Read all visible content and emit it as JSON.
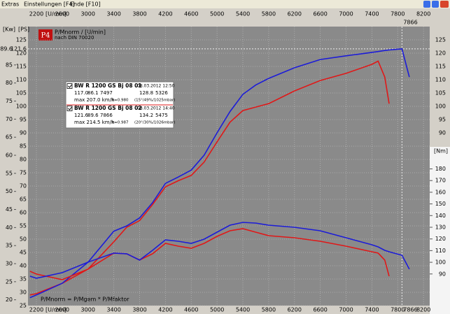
{
  "menu": [
    "Extras",
    "Einstellungen [F4]",
    "Ende [F10]"
  ],
  "chart_data": {
    "type": "line",
    "logo": "P4",
    "title": "P/Mnorm / [U/min]",
    "subtitle": "nach DIN 70020",
    "formula": "P/Mnorm = P/Mgem * P/Mfaktor",
    "x_label": "[U/min]",
    "y_label": "[PS]",
    "kw_label": "[Kw]",
    "nm_label": "[Nm]",
    "x": [
      2100,
      2200,
      2600,
      3000,
      3400,
      3600,
      3800,
      4000,
      4200,
      4400,
      4600,
      4800,
      5000,
      5200,
      5400,
      5600,
      5800,
      6200,
      6600,
      7000,
      7400,
      7497,
      7600,
      7667,
      7866,
      7980
    ],
    "xlim": [
      2070,
      8296
    ],
    "xticks": [
      2200,
      2600,
      3000,
      3400,
      3800,
      4200,
      4600,
      5000,
      5400,
      5800,
      6200,
      6600,
      7000,
      7400,
      7800,
      8200
    ],
    "ylim": [
      25,
      130
    ],
    "yticks": [
      25,
      30,
      35,
      40,
      45,
      50,
      55,
      60,
      65,
      70,
      75,
      80,
      85,
      90,
      95,
      100,
      105,
      110,
      115,
      120,
      125
    ],
    "kwlim": [
      18.39,
      95.62
    ],
    "kwticks": [
      20,
      25,
      30,
      35,
      40,
      45,
      50,
      55,
      60,
      65,
      70,
      75,
      80,
      85
    ],
    "nmlim": [
      62.9,
      301.9
    ],
    "nmticks": [
      90,
      100,
      110,
      120,
      130,
      140,
      150,
      160,
      170,
      180
    ],
    "grid": true,
    "max_marker": {
      "kw": 89.6,
      "ps": 121.6,
      "rpm": 7866
    },
    "series": [
      {
        "color": "#e01818",
        "axis": "ps",
        "values": [
          29,
          29.5,
          33.4,
          38.7,
          49,
          54.5,
          57,
          63,
          69.7,
          72,
          74,
          79,
          86.6,
          94,
          98.4,
          99.7,
          101,
          105.8,
          109.7,
          112.4,
          115.8,
          117,
          111,
          101,
          null,
          null
        ]
      },
      {
        "color": "#1c1cd8",
        "axis": "ps",
        "values": [
          28,
          29,
          33.4,
          41.3,
          53,
          55,
          58,
          63.7,
          71,
          73.4,
          76,
          81.6,
          90,
          98,
          104.5,
          108,
          110.5,
          114.5,
          117.6,
          119,
          120.3,
          120.6,
          121,
          121.2,
          121.6,
          111
        ]
      },
      {
        "color": "#e01818",
        "axis": "nm",
        "values": [
          92.3,
          89.9,
          85.1,
          94.1,
          107.9,
          107.3,
          101.9,
          107.3,
          116.2,
          113.8,
          112,
          116.2,
          122.2,
          127,
          128.8,
          125.8,
          122.8,
          121,
          118,
          113.8,
          109,
          107.9,
          101.9,
          88.1,
          null,
          null
        ]
      },
      {
        "color": "#1c1cd8",
        "axis": "nm",
        "values": [
          88.1,
          86.3,
          91.1,
          100.1,
          107.9,
          107.3,
          101.9,
          110.2,
          119.2,
          118,
          116.2,
          119.8,
          125.8,
          131.8,
          134.2,
          133.6,
          131.8,
          130,
          127,
          121,
          115,
          113.2,
          110.2,
          109,
          106,
          94.1
        ]
      }
    ],
    "legend": [
      {
        "name": "BW R 1200 GS Bj 08 01",
        "date": "08.03.2012 12:50",
        "stats": [
          "117.0",
          "86.1",
          "7497",
          "128.8",
          "5326"
        ],
        "max": "max 207.0 km/h",
        "k": "k=0.980",
        "cond": "(15°/49%/1025mbar)"
      },
      {
        "name": "BW R 1200 GS Bj 08 02",
        "date": "08.03.2012 14:40",
        "stats": [
          "121.6",
          "89.6",
          "7866",
          "134.2",
          "5475"
        ],
        "max": "max 214.5 km/h",
        "k": "k=0.987",
        "cond": "(20°/30%/1026mbar)"
      }
    ]
  }
}
